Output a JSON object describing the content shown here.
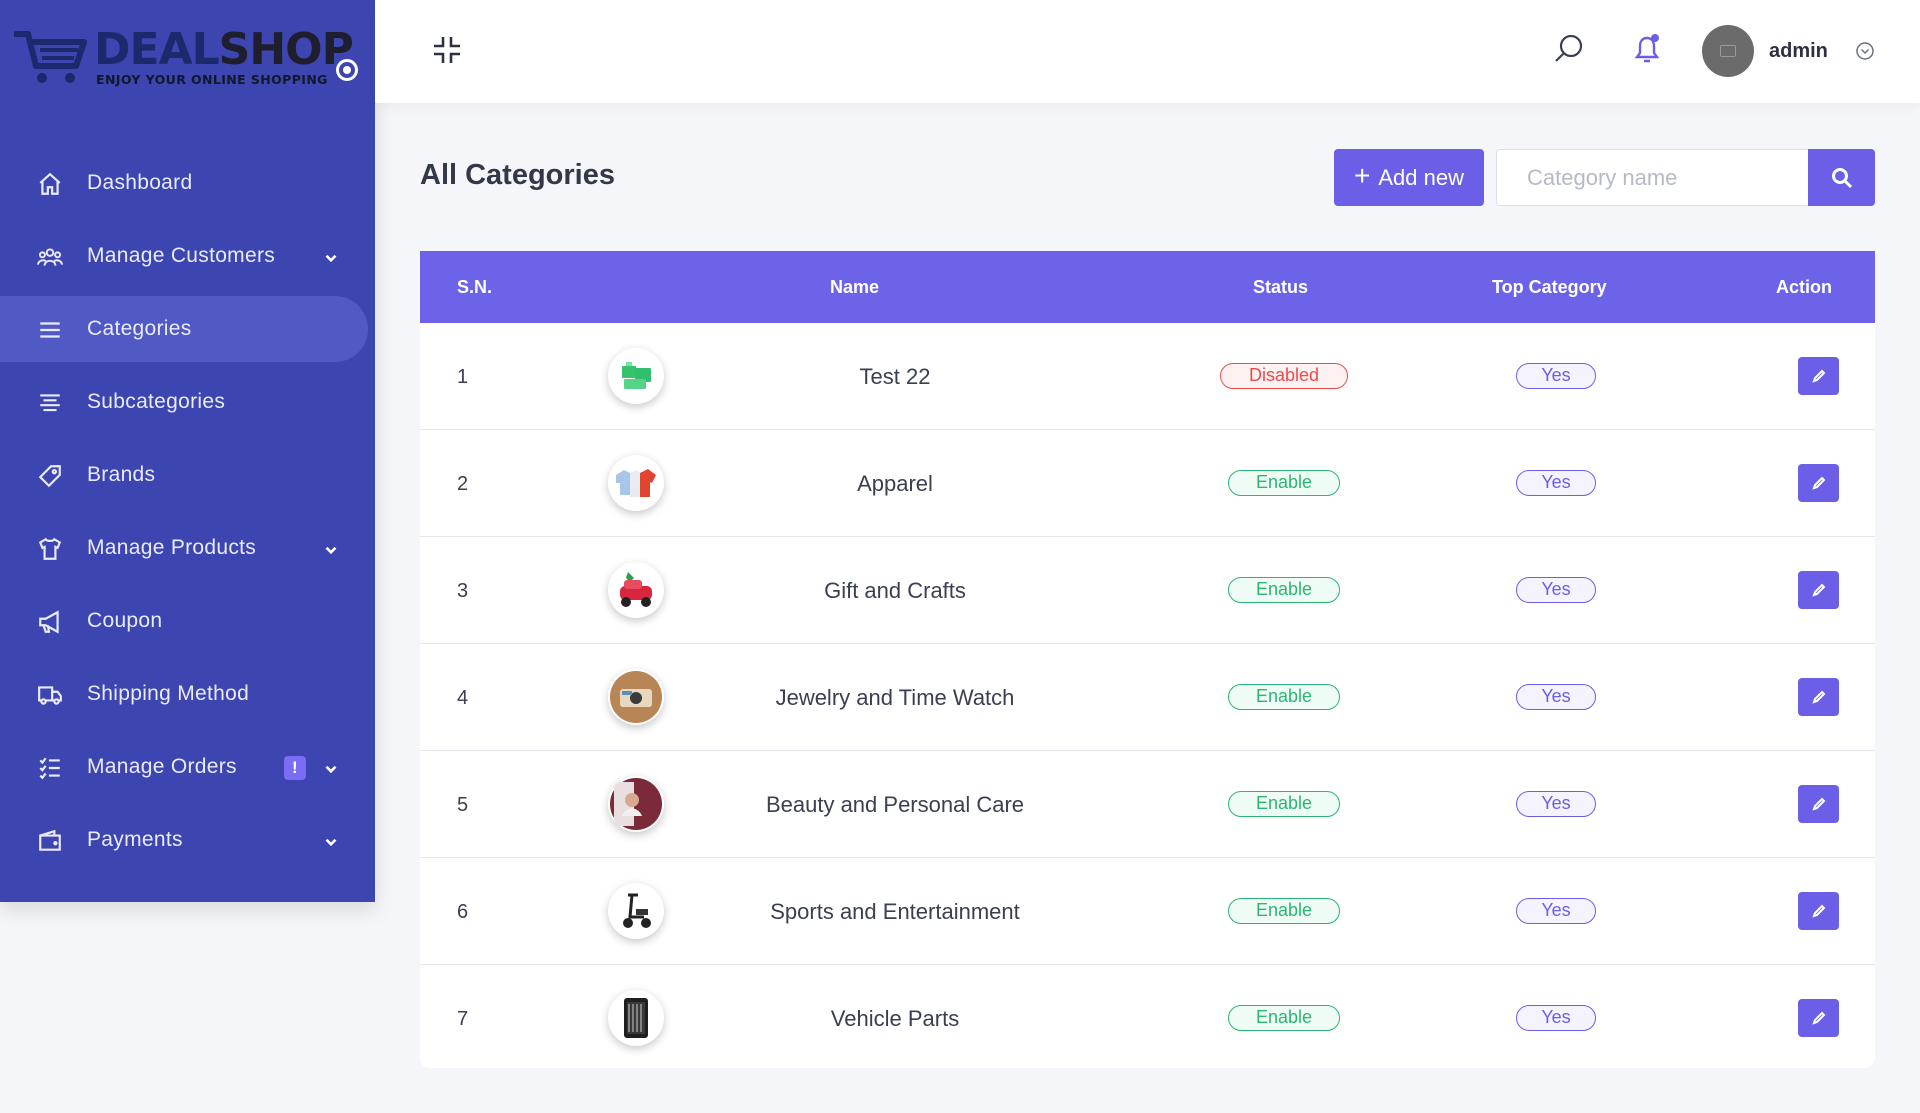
{
  "brand": {
    "name_part1": "DEAL",
    "name_part2": "SHOP",
    "tagline": "ENJOY YOUR ONLINE SHOPPING"
  },
  "sidebar": {
    "items": [
      {
        "label": "Dashboard",
        "icon": "home-icon"
      },
      {
        "label": "Manage Customers",
        "icon": "users-icon",
        "has_submenu": true
      },
      {
        "label": "Categories",
        "icon": "list-icon",
        "active": true
      },
      {
        "label": "Subcategories",
        "icon": "align-icon"
      },
      {
        "label": "Brands",
        "icon": "tag-icon"
      },
      {
        "label": "Manage Products",
        "icon": "shirt-icon",
        "has_submenu": true
      },
      {
        "label": "Coupon",
        "icon": "megaphone-icon"
      },
      {
        "label": "Shipping Method",
        "icon": "truck-icon"
      },
      {
        "label": "Manage Orders",
        "icon": "checklist-icon",
        "has_submenu": true,
        "badge": "!"
      },
      {
        "label": "Payments",
        "icon": "wallet-icon",
        "has_submenu": true
      }
    ]
  },
  "topbar": {
    "user_name": "admin"
  },
  "page": {
    "title": "All Categories",
    "add_button_label": "Add new",
    "add_button_icon": "+",
    "search_placeholder": "Category name"
  },
  "table": {
    "headers": {
      "sn": "S.N.",
      "name": "Name",
      "status": "Status",
      "top_category": "Top Category",
      "action": "Action"
    },
    "rows": [
      {
        "sn": "1",
        "name": "Test 22",
        "status": "Disabled",
        "top_category": "Yes",
        "thumb": "green-cards-image"
      },
      {
        "sn": "2",
        "name": "Apparel",
        "status": "Enable",
        "top_category": "Yes",
        "thumb": "shirts-image"
      },
      {
        "sn": "3",
        "name": "Gift and Crafts",
        "status": "Enable",
        "top_category": "Yes",
        "thumb": "toy-car-image"
      },
      {
        "sn": "4",
        "name": "Jewelry and Time Watch",
        "status": "Enable",
        "top_category": "Yes",
        "thumb": "watch-box-image"
      },
      {
        "sn": "5",
        "name": "Beauty and Personal Care",
        "status": "Enable",
        "top_category": "Yes",
        "thumb": "beauty-image"
      },
      {
        "sn": "6",
        "name": "Sports and Entertainment",
        "status": "Enable",
        "top_category": "Yes",
        "thumb": "scooter-image"
      },
      {
        "sn": "7",
        "name": "Vehicle Parts",
        "status": "Enable",
        "top_category": "Yes",
        "thumb": "tool-case-image"
      }
    ]
  },
  "colors": {
    "sidebar_bg": "#3d45b1",
    "accent": "#6a5fe6",
    "table_header": "#6c63e8",
    "status_enabled": "#2bb673",
    "status_disabled": "#ef4b4b"
  }
}
